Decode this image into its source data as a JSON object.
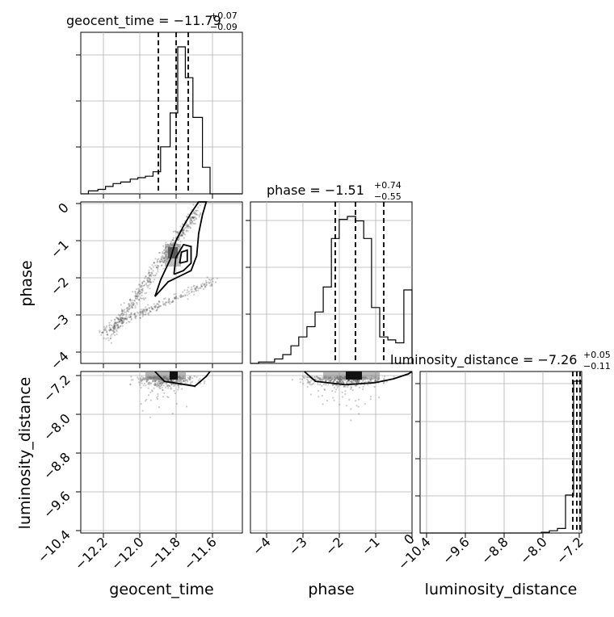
{
  "chart_data": {
    "type": "corner",
    "parameters": [
      "geocent_time",
      "phase",
      "luminosity_distance"
    ],
    "titles": [
      {
        "param": "geocent_time",
        "lhs": "geocent_time = −11.79",
        "plus": "+0.07",
        "minus": "−0.09"
      },
      {
        "param": "phase",
        "lhs": "phase = −1.51",
        "plus": "+0.74",
        "minus": "−0.55"
      },
      {
        "param": "luminosity_distance",
        "lhs": "luminosity_distance = −7.26",
        "plus": "+0.05",
        "minus": "−0.11"
      }
    ],
    "axis_labels": {
      "x": [
        "geocent_time",
        "phase",
        "luminosity_distance"
      ],
      "y": [
        "phase",
        "luminosity_distance"
      ]
    },
    "ranges": {
      "geocent_time": [
        -12.34,
        -11.49
      ],
      "phase": [
        -4.35,
        0.0
      ],
      "luminosity_distance": [
        -10.45,
        -7.15
      ]
    },
    "ticks": {
      "geocent_time": {
        "values": [
          -12.2,
          -12.0,
          -11.8,
          -11.6
        ],
        "labels": [
          "−12.2",
          "−12.0",
          "−11.8",
          "−11.6"
        ]
      },
      "phase_x": {
        "values": [
          -4,
          -3,
          -2,
          -1,
          0
        ],
        "labels": [
          "−4",
          "−3",
          "−2",
          "−1",
          "0"
        ]
      },
      "phase_y": {
        "values": [
          0,
          -1,
          -2,
          -3,
          -4
        ],
        "labels": [
          "0",
          "−1",
          "−2",
          "−3",
          "−4"
        ]
      },
      "luminosity_distance_x": {
        "values": [
          -10.4,
          -9.6,
          -8.8,
          -8.0,
          -7.2
        ],
        "labels": [
          "−10.4",
          "−9.6",
          "−8.8",
          "−8.0",
          "−7.2"
        ]
      },
      "luminosity_distance_y": {
        "values": [
          -7.2,
          -8.0,
          -8.8,
          -9.6,
          -10.4
        ],
        "labels": [
          "−7.2",
          "−8.0",
          "−8.8",
          "−9.6",
          "−10.4"
        ]
      }
    },
    "quantiles": {
      "geocent_time": [
        -11.88,
        -11.79,
        -11.72
      ],
      "phase": [
        -2.06,
        -1.51,
        -0.77
      ],
      "luminosity_distance": [
        -7.37,
        -7.26,
        -7.21
      ]
    },
    "histograms": {
      "geocent_time": {
        "edges": [
          -12.34,
          -12.3,
          -12.25,
          -12.21,
          -12.17,
          -12.13,
          -12.08,
          -12.04,
          -12.0,
          -11.96,
          -11.92,
          -11.87,
          -11.83,
          -11.79,
          -11.75,
          -11.7,
          -11.66,
          -11.62,
          -11.58,
          -11.53,
          -11.49
        ],
        "counts": [
          0.0,
          0.02,
          0.03,
          0.05,
          0.07,
          0.08,
          0.1,
          0.11,
          0.12,
          0.15,
          0.32,
          0.55,
          1.0,
          0.79,
          0.52,
          0.18,
          0.0,
          0.0,
          0.0,
          0.0
        ]
      },
      "phase": {
        "edges": [
          -4.35,
          -4.13,
          -3.91,
          -3.7,
          -3.48,
          -3.26,
          -3.05,
          -2.83,
          -2.61,
          -2.39,
          -2.17,
          -1.96,
          -1.74,
          -1.52,
          -1.3,
          -1.09,
          -0.87,
          -0.65,
          -0.44,
          -0.22,
          0.0
        ],
        "counts": [
          0.0,
          0.01,
          0.01,
          0.03,
          0.06,
          0.12,
          0.18,
          0.25,
          0.35,
          0.52,
          0.85,
          0.98,
          1.0,
          0.97,
          0.85,
          0.38,
          0.18,
          0.16,
          0.14,
          0.5
        ]
      },
      "luminosity_distance": {
        "edges": [
          -10.45,
          -10.285,
          -10.12,
          -9.955,
          -9.79,
          -9.625,
          -9.46,
          -9.295,
          -9.13,
          -8.965,
          -8.8,
          -8.635,
          -8.47,
          -8.305,
          -8.14,
          -7.975,
          -7.81,
          -7.645,
          -7.48,
          -7.315,
          -7.15
        ],
        "counts": [
          0.0,
          0.0,
          0.0,
          0.0,
          0.0,
          0.0,
          0.0,
          0.0,
          0.0,
          0.0,
          0.0,
          0.0,
          0.0,
          0.0,
          0.0,
          0.005,
          0.015,
          0.03,
          0.25,
          1.0
        ]
      }
    },
    "contours_2d": {
      "phase_vs_geocent_time": [
        [
          [
            -11.95,
            -2.55
          ],
          [
            -11.92,
            -2.1
          ],
          [
            -11.87,
            -1.55
          ],
          [
            -11.84,
            -1.05
          ],
          [
            -11.8,
            -0.65
          ],
          [
            -11.76,
            -0.3
          ],
          [
            -11.72,
            0.0
          ],
          [
            -11.68,
            0.0
          ],
          [
            -11.7,
            -0.35
          ],
          [
            -11.72,
            -0.85
          ],
          [
            -11.73,
            -1.45
          ],
          [
            -11.76,
            -1.85
          ],
          [
            -11.82,
            -2.0
          ],
          [
            -11.88,
            -2.15
          ],
          [
            -11.95,
            -2.55
          ]
        ],
        [
          [
            -11.85,
            -1.95
          ],
          [
            -11.84,
            -1.5
          ],
          [
            -11.8,
            -1.15
          ],
          [
            -11.76,
            -1.2
          ],
          [
            -11.76,
            -1.65
          ],
          [
            -11.8,
            -1.85
          ],
          [
            -11.85,
            -1.95
          ]
        ],
        [
          [
            -11.82,
            -1.65
          ],
          [
            -11.81,
            -1.35
          ],
          [
            -11.78,
            -1.3
          ],
          [
            -11.78,
            -1.6
          ],
          [
            -11.82,
            -1.65
          ]
        ]
      ],
      "luminosity_distance_vs_geocent_time": [
        [
          [
            -11.95,
            -7.15
          ],
          [
            -11.9,
            -7.35
          ],
          [
            -11.82,
            -7.4
          ],
          [
            -11.74,
            -7.45
          ],
          [
            -11.68,
            -7.25
          ],
          [
            -11.66,
            -7.15
          ]
        ]
      ],
      "luminosity_distance_vs_phase": [
        [
          [
            -2.9,
            -7.15
          ],
          [
            -2.6,
            -7.35
          ],
          [
            -1.8,
            -7.42
          ],
          [
            -1.0,
            -7.38
          ],
          [
            -0.5,
            -7.3
          ],
          [
            -0.1,
            -7.2
          ],
          [
            0.0,
            -7.15
          ]
        ]
      ]
    },
    "grid": true
  }
}
